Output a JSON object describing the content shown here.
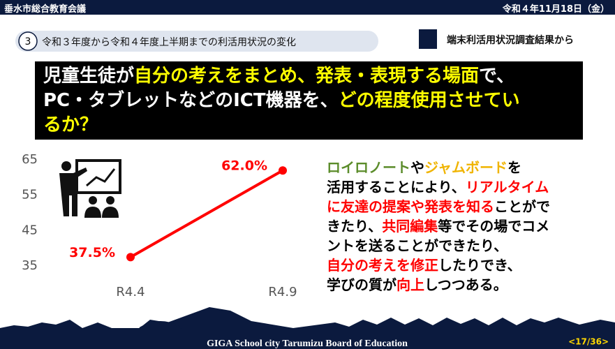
{
  "header": {
    "left": "垂水市総合教育会議",
    "right": "令和４年11月18日（金）"
  },
  "section": {
    "number": "3",
    "title": "令和３年度から令和４年度上半期までの利活用状況の変化",
    "source": "端末利活用状況調査結果から"
  },
  "question": {
    "lines": [
      [
        {
          "text": "児童生徒が",
          "color": "#ffffff"
        },
        {
          "text": "自分の考えをまとめ、発表・表現する場面",
          "color": "#ffff00"
        },
        {
          "text": "で、",
          "color": "#ffffff"
        }
      ],
      [
        {
          "text": "PC・タブレットなどのICT機器を、",
          "color": "#ffffff"
        },
        {
          "text": "どの程度使用させてい",
          "color": "#ffff00"
        }
      ],
      [
        {
          "text": "るか？",
          "color": "#ffff00"
        }
      ]
    ]
  },
  "chart_data": {
    "type": "line",
    "categories": [
      "R4.4",
      "R4.9"
    ],
    "values": [
      37.5,
      62.0
    ],
    "value_labels": [
      "37.5%",
      "62.0%"
    ],
    "color": "#ff0000",
    "ylim": [
      35,
      65
    ],
    "yticks": [
      35,
      45,
      55,
      65
    ],
    "grid": false
  },
  "comment": {
    "lines": [
      [
        {
          "text": "ロイロノート",
          "color": "#5b8c2a"
        },
        {
          "text": "や",
          "color": "#000000"
        },
        {
          "text": "ジャムボード",
          "color": "#f0b400"
        },
        {
          "text": "を",
          "color": "#000000"
        }
      ],
      [
        {
          "text": "活用することにより、",
          "color": "#000000"
        },
        {
          "text": "リアルタイム",
          "color": "#ff0000"
        }
      ],
      [
        {
          "text": "に友達の提案や発表を知る",
          "color": "#ff0000"
        },
        {
          "text": "ことがで",
          "color": "#000000"
        }
      ],
      [
        {
          "text": "きたり、",
          "color": "#000000"
        },
        {
          "text": "共同編集",
          "color": "#ff0000"
        },
        {
          "text": "等でその場でコメ",
          "color": "#000000"
        }
      ],
      [
        {
          "text": "ントを送ることができたり、",
          "color": "#000000"
        }
      ],
      [
        {
          "text": "自分の考えを修正",
          "color": "#ff0000"
        },
        {
          "text": "したりでき、",
          "color": "#000000"
        }
      ],
      [
        {
          "text": "学びの質が",
          "color": "#000000"
        },
        {
          "text": "向上",
          "color": "#ff0000"
        },
        {
          "text": "しつつある。",
          "color": "#000000"
        }
      ]
    ]
  },
  "footer": {
    "title": "GIGA School city Tarumizu Board of Education",
    "page": "<17/36>"
  }
}
